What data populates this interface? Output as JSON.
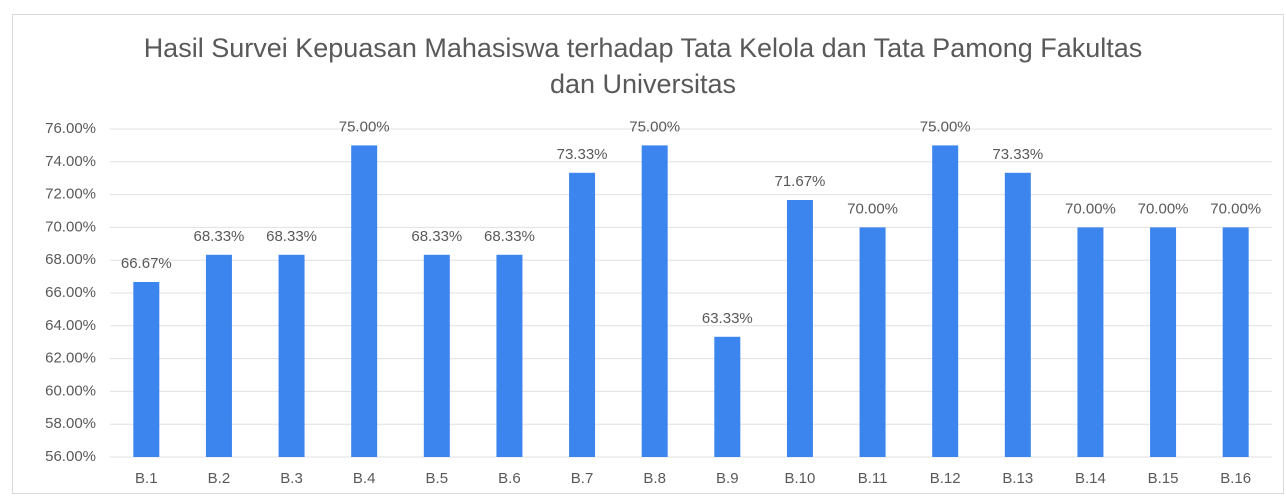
{
  "chart_data": {
    "type": "bar",
    "title": "Hasil Survei Kepuasan Mahasiswa terhadap Tata Kelola dan Tata Pamong Fakultas dan Universitas",
    "categories": [
      "B.1",
      "B.2",
      "B.3",
      "B.4",
      "B.5",
      "B.6",
      "B.7",
      "B.8",
      "B.9",
      "B.10",
      "B.11",
      "B.12",
      "B.13",
      "B.14",
      "B.15",
      "B.16"
    ],
    "values": [
      66.67,
      68.33,
      68.33,
      75,
      68.33,
      68.33,
      73.33,
      75,
      63.33,
      71.67,
      70,
      75,
      73.33,
      70,
      70,
      70
    ],
    "value_labels": [
      "66.67%",
      "68.33%",
      "68.33%",
      "75.00%",
      "68.33%",
      "68.33%",
      "73.33%",
      "75.00%",
      "63.33%",
      "71.67%",
      "70.00%",
      "75.00%",
      "73.33%",
      "70.00%",
      "70.00%",
      "70.00%"
    ],
    "color": "#3d85ee",
    "ylim": [
      56,
      76
    ],
    "yticks": [
      {
        "value": 56,
        "label": "56.00%"
      },
      {
        "value": 58,
        "label": "58.00%"
      },
      {
        "value": 60,
        "label": "60.00%"
      },
      {
        "value": 62,
        "label": "62.00%"
      },
      {
        "value": 64,
        "label": "64.00%"
      },
      {
        "value": 66,
        "label": "66.00%"
      },
      {
        "value": 68,
        "label": "68.00%"
      },
      {
        "value": 70,
        "label": "70.00%"
      },
      {
        "value": 72,
        "label": "72.00%"
      },
      {
        "value": 74,
        "label": "74.00%"
      },
      {
        "value": 76,
        "label": "76.00%"
      }
    ],
    "grid": true
  }
}
